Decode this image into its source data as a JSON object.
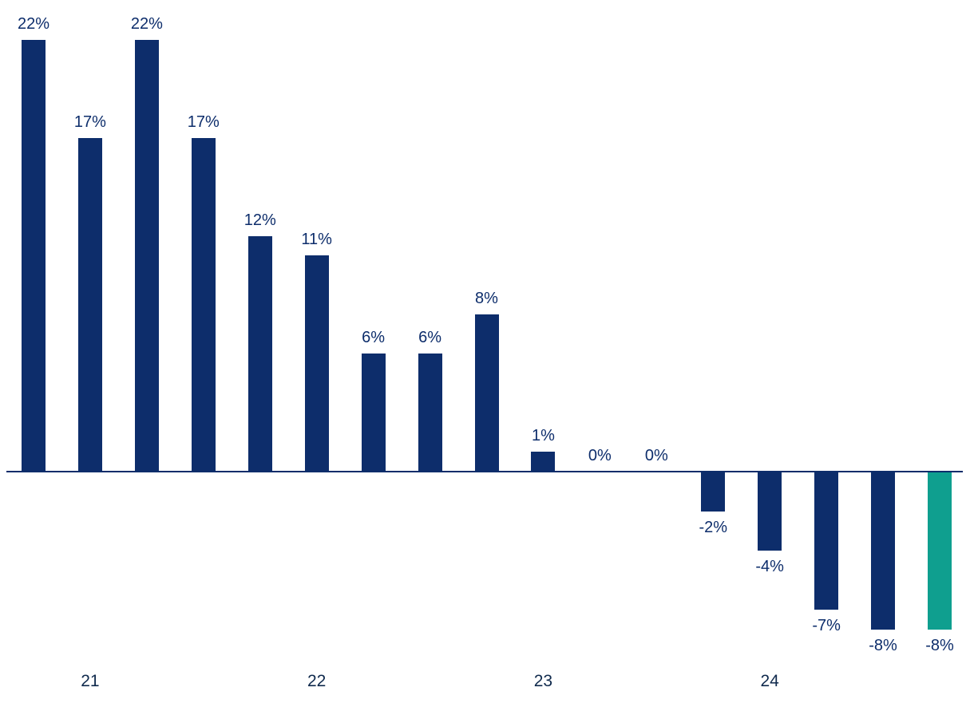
{
  "chart_data": {
    "type": "bar",
    "title": "",
    "values": [
      22,
      17,
      22,
      17,
      12,
      11,
      6,
      6,
      8,
      1,
      0,
      0,
      -2,
      -4,
      -7,
      -8,
      -8
    ],
    "value_labels": [
      "22%",
      "17%",
      "22%",
      "17%",
      "12%",
      "11%",
      "6%",
      "6%",
      "8%",
      "1%",
      "0%",
      "0%",
      "-2%",
      "-4%",
      "-7%",
      "-8%",
      "-8%"
    ],
    "highlight_index": 16,
    "x_axis_ticks": [
      {
        "label": "21",
        "bar_index": 1
      },
      {
        "label": "22",
        "bar_index": 5
      },
      {
        "label": "23",
        "bar_index": 9
      },
      {
        "label": "24",
        "bar_index": 13
      }
    ],
    "colors": {
      "bar_default": "#0d2d6b",
      "bar_highlight": "#0f9f8f",
      "axis_line": "#0d2d6b",
      "value_label_text": "#0d2d6b",
      "tick_label_text": "#102a4d"
    },
    "ylim": [
      -10,
      24
    ],
    "grid": false,
    "legend": false,
    "xlabel": "",
    "ylabel": ""
  }
}
